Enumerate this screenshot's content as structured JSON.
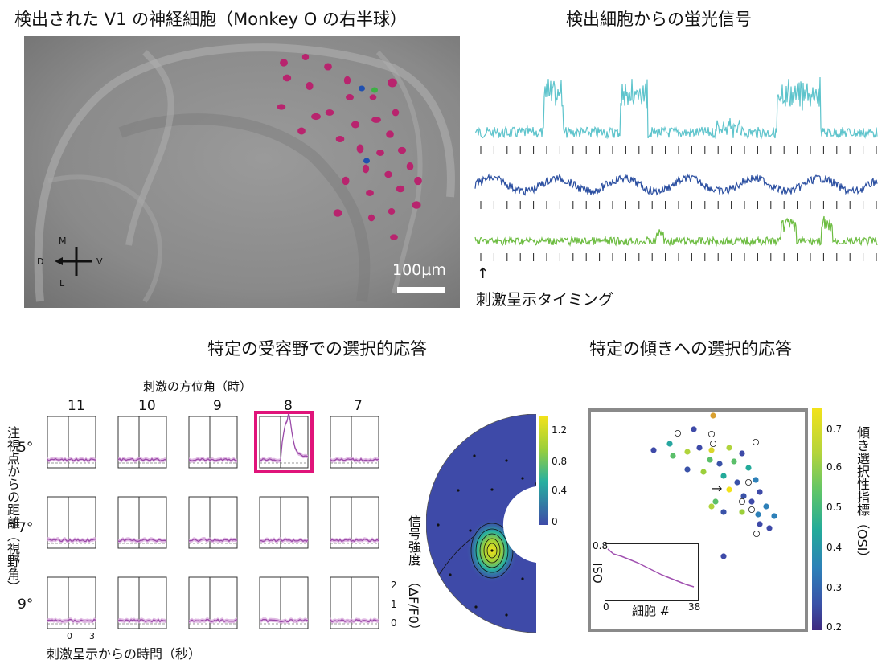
{
  "panel_a": {
    "title": "検出された V1 の神経細胞（Monkey O の右半球）",
    "compass": {
      "m": "M",
      "d": "D",
      "v": "V",
      "l": "L"
    },
    "scalebar": "100µm",
    "colors": {
      "cells": "#b8246e",
      "blue": "#2050b0",
      "teal": "#2aa0b8",
      "green": "#3cb043"
    }
  },
  "panel_b": {
    "title": "検出細胞からの蛍光信号",
    "stim_label": "刺激呈示タイミング",
    "arrow": "↑",
    "trace_colors": [
      "#5ec4cc",
      "#2a4ea0",
      "#6cbc40"
    ]
  },
  "panel_c": {
    "title": "特定の受容野での選択的応答",
    "top_axis_label": "刺激の方位角（時）",
    "columns": [
      "11",
      "10",
      "9",
      "8",
      "7"
    ],
    "rows": [
      "5°",
      "7°",
      "9°"
    ],
    "ylabel": "注視点からの距離（視野角）",
    "xlabel": "刺激呈示からの時間（秒）",
    "xticks": [
      "0",
      "3"
    ],
    "yticks": [
      "2",
      "1",
      "0"
    ],
    "y_unit": "（ΔF/F0）",
    "colorbar_label": "信号強度",
    "colorbar_ticks": [
      "1.2",
      "0.8",
      "0.4",
      "0"
    ],
    "highlight": {
      "row": 0,
      "col": 3,
      "color": "#e0147a"
    }
  },
  "panel_d": {
    "title": "特定の傾きへの選択的応答",
    "colorbar_label": "傾き選択性指標（OSI）",
    "colorbar_ticks": [
      "0.7",
      "0.6",
      "0.5",
      "0.4",
      "0.3",
      "0.2"
    ],
    "inset": {
      "ylabel": "OSI",
      "xlabel": "細胞 #",
      "x_start": "0",
      "x_end": "38",
      "y_top": "0.8"
    },
    "arrow": "→"
  }
}
